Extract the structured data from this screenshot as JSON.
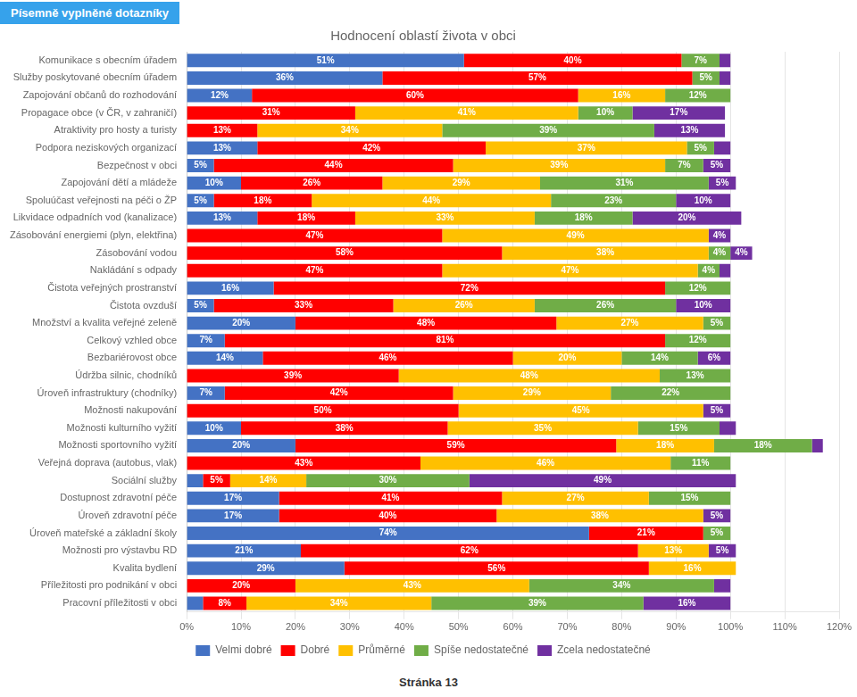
{
  "chart_data": {
    "type": "bar",
    "orientation": "horizontal",
    "stacked": true,
    "title": "Hodnocení oblastí života v obci",
    "annotations": [
      "Písemně vyplněné dotazníky",
      "Stránka 13"
    ],
    "categories": [
      "Komunikace s obecním úřadem",
      "Služby poskytované obecním úřadem",
      "Zapojování občanů do rozhodování",
      "Propagace obce (v ČR, v zahraničí)",
      "Atraktivity pro hosty a turisty",
      "Podpora neziskových organizací",
      "Bezpečnost v obci",
      "Zapojování dětí a mládeže",
      "Spoluúčast veřejnosti na péči o ŽP",
      "Likvidace odpadních vod (kanalizace)",
      "Zásobování energiemi (plyn, elektřina)",
      "Zásobování vodou",
      "Nakládání s odpady",
      "Čistota veřejných prostranství",
      "Čistota ovzduší",
      "Množství a kvalita veřejné zeleně",
      "Celkový vzhled obce",
      "Bezbariérovost obce",
      "Údržba silnic, chodníků",
      "Úroveň infrastruktury (chodníky)",
      "Možnosti nakupování",
      "Možnosti kulturního vyžití",
      "Možnosti sportovního vyžití",
      "Veřejná doprava (autobus, vlak)",
      "Sociální služby",
      "Dostupnost zdravotní péče",
      "Úroveň zdravotní péče",
      "Úroveň mateřské a základní školy",
      "Možnosti pro výstavbu RD",
      "Kvalita bydlení",
      "Příležitosti pro podnikání v obci",
      "Pracovní příležitosti v obci"
    ],
    "series": [
      {
        "name": "Velmi dobré",
        "color": "#4472C4",
        "values": [
          51,
          36,
          12,
          0,
          0,
          13,
          5,
          10,
          5,
          13,
          0,
          0,
          0,
          16,
          5,
          20,
          7,
          14,
          0,
          7,
          0,
          10,
          20,
          0,
          3,
          17,
          17,
          74,
          21,
          29,
          0,
          3
        ],
        "value_labels": [
          "51%",
          "36%",
          "12%",
          null,
          null,
          "13%",
          "5%",
          "10%",
          "5%",
          "13%",
          null,
          null,
          null,
          "16%",
          "5%",
          "20%",
          "7%",
          "14%",
          null,
          "7%",
          null,
          "10%",
          "20%",
          null,
          null,
          "17%",
          "17%",
          "74%",
          "21%",
          "29%",
          null,
          null
        ]
      },
      {
        "name": "Dobré",
        "color": "#FF0000",
        "values": [
          40,
          57,
          60,
          31,
          13,
          42,
          44,
          26,
          18,
          18,
          47,
          58,
          47,
          72,
          33,
          48,
          81,
          46,
          39,
          42,
          50,
          38,
          59,
          43,
          5,
          41,
          40,
          21,
          62,
          56,
          20,
          8
        ],
        "value_labels": [
          "40%",
          "57%",
          "60%",
          "31%",
          "13%",
          "42%",
          "44%",
          "26%",
          "18%",
          "18%",
          "47%",
          "58%",
          "47%",
          "72%",
          "33%",
          "48%",
          "81%",
          "46%",
          "39%",
          "42%",
          "50%",
          "38%",
          "59%",
          "43%",
          "5%",
          "41%",
          "40%",
          "21%",
          "62%",
          "56%",
          "20%",
          "8%"
        ]
      },
      {
        "name": "Průměrné",
        "color": "#FFC000",
        "values": [
          0,
          0,
          16,
          41,
          34,
          37,
          39,
          29,
          44,
          33,
          49,
          38,
          47,
          0,
          26,
          27,
          0,
          20,
          48,
          29,
          45,
          35,
          18,
          46,
          14,
          27,
          38,
          0,
          13,
          16,
          43,
          34
        ],
        "value_labels": [
          null,
          null,
          "16%",
          "41%",
          "34%",
          "37%",
          "39%",
          "29%",
          "44%",
          "33%",
          "49%",
          "38%",
          "47%",
          null,
          "26%",
          "27%",
          null,
          "20%",
          "48%",
          "29%",
          "45%",
          "35%",
          "18%",
          "46%",
          "14%",
          "27%",
          "38%",
          null,
          "13%",
          "16%",
          "43%",
          "34%"
        ]
      },
      {
        "name": "Spíše nedostatečné",
        "color": "#70AD47",
        "values": [
          7,
          5,
          12,
          10,
          39,
          5,
          7,
          31,
          23,
          18,
          0,
          4,
          4,
          12,
          26,
          5,
          12,
          14,
          13,
          22,
          0,
          15,
          18,
          11,
          30,
          15,
          0,
          5,
          0,
          0,
          34,
          39
        ],
        "value_labels": [
          "7%",
          "5%",
          "12%",
          "10%",
          "39%",
          "5%",
          "7%",
          "31%",
          "23%",
          "18%",
          null,
          "4%",
          "4%",
          "12%",
          "26%",
          "5%",
          "12%",
          "14%",
          "13%",
          "22%",
          null,
          "15%",
          "18%",
          "11%",
          "30%",
          "15%",
          null,
          "5%",
          null,
          null,
          "34%",
          "39%"
        ]
      },
      {
        "name": "Zcela nedostatečné",
        "color": "#7030A0",
        "values": [
          2,
          2,
          0,
          17,
          13,
          3,
          5,
          5,
          10,
          20,
          4,
          4,
          2,
          0,
          10,
          0,
          0,
          6,
          0,
          0,
          5,
          3,
          2,
          0,
          49,
          0,
          5,
          0,
          5,
          0,
          3,
          16
        ],
        "value_labels": [
          null,
          null,
          null,
          "17%",
          "13%",
          null,
          "5%",
          "5%",
          "10%",
          "20%",
          "4%",
          "4%",
          null,
          null,
          "10%",
          null,
          null,
          "6%",
          null,
          null,
          "5%",
          null,
          null,
          null,
          "49%",
          null,
          "5%",
          null,
          "5%",
          null,
          null,
          "16%"
        ]
      }
    ],
    "xlim": [
      0,
      120
    ],
    "xticks": [
      {
        "value": 0,
        "label": "0%"
      },
      {
        "value": 10,
        "label": "10%"
      },
      {
        "value": 20,
        "label": "20%"
      },
      {
        "value": 30,
        "label": "30%"
      },
      {
        "value": 40,
        "label": "40%"
      },
      {
        "value": 50,
        "label": "50%"
      },
      {
        "value": 60,
        "label": "60%"
      },
      {
        "value": 70,
        "label": "70%"
      },
      {
        "value": 80,
        "label": "80%"
      },
      {
        "value": 90,
        "label": "90%"
      },
      {
        "value": 100,
        "label": "100%"
      },
      {
        "value": 110,
        "label": "110%"
      },
      {
        "value": 120,
        "label": "120%"
      }
    ],
    "grid": "x",
    "legend": "bottom",
    "data_labels": true
  }
}
